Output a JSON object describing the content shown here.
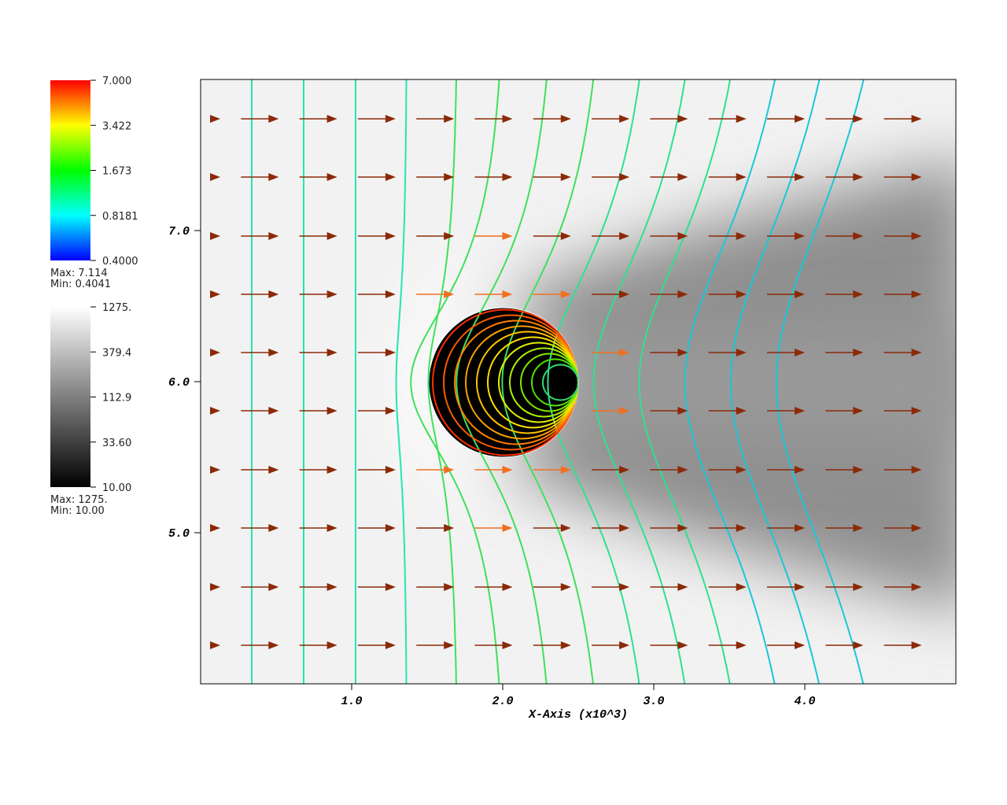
{
  "chart_data": {
    "type": "field",
    "x_axis_label": "X-Axis (x10^3)",
    "xlim": [
      0,
      5
    ],
    "ylim": [
      4,
      8
    ],
    "xticks": [
      {
        "value": 1,
        "label": "1.0"
      },
      {
        "value": 2,
        "label": "2.0"
      },
      {
        "value": 3,
        "label": "3.0"
      },
      {
        "value": 4,
        "label": "4.0"
      }
    ],
    "yticks": [
      {
        "value": 5,
        "label": "5.0"
      },
      {
        "value": 6,
        "label": "6.0"
      },
      {
        "value": 7,
        "label": "7.0"
      }
    ],
    "legends": [
      {
        "labels": [
          "7.000",
          "3.422",
          "1.673",
          "0.8181",
          "0.4000"
        ],
        "max": "Max: 7.114",
        "min": "Min: 0.4041",
        "colors": [
          "#ff0000",
          "#ffff00",
          "#00ff00",
          "#00ffff",
          "#0000ff"
        ]
      },
      {
        "labels": [
          "1275.",
          "379.4",
          "112.9",
          "33.60",
          "10.00"
        ],
        "max": "Max:  1275.",
        "min": "Min:  10.00",
        "colors": [
          "#ffffff",
          "#000000"
        ]
      }
    ]
  }
}
